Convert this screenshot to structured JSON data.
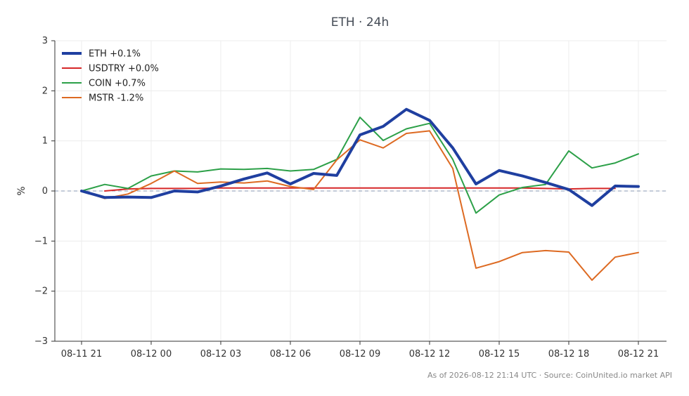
{
  "chart_data": {
    "type": "line",
    "title": "ETH · 24h",
    "xlabel": "",
    "ylabel": "%",
    "ylim": [
      -3,
      3
    ],
    "y_ticks": [
      -3,
      -2,
      -1,
      0,
      1,
      2,
      3
    ],
    "y_tick_labels": [
      "−3",
      "−2",
      "−1",
      "0",
      "1",
      "2",
      "3"
    ],
    "x_ticks": [
      0,
      3,
      6,
      9,
      12,
      15,
      18,
      21,
      24
    ],
    "x_tick_labels": [
      "08-11 21",
      "08-12 00",
      "08-12 03",
      "08-12 06",
      "08-12 09",
      "08-12 12",
      "08-12 15",
      "08-12 18",
      "08-12 21"
    ],
    "x_unit": "hours since 08-11 21:00 UTC",
    "grid": true,
    "legend_position": "top-left",
    "zero_line": true,
    "series": [
      {
        "name": "ETH +0.1%",
        "color": "#1f3fa0",
        "width": 4,
        "x": [
          0,
          1,
          2,
          3,
          4,
          5,
          6,
          7,
          8,
          9,
          10,
          11,
          12,
          13,
          14,
          15,
          16,
          17,
          18,
          19,
          20,
          21,
          22,
          23,
          24
        ],
        "y": [
          0.0,
          -0.13,
          -0.12,
          -0.13,
          0.0,
          -0.02,
          0.1,
          0.24,
          0.36,
          0.14,
          0.35,
          0.31,
          1.12,
          1.29,
          1.63,
          1.41,
          0.86,
          0.14,
          0.41,
          0.3,
          0.17,
          0.03,
          -0.29,
          0.1,
          0.09
        ]
      },
      {
        "name": "USDTRY +0.0%",
        "color": "#d62728",
        "width": 2,
        "x": [
          1,
          2,
          3,
          4,
          5,
          6,
          7,
          8,
          9,
          10,
          11,
          12,
          13,
          14,
          15,
          16,
          17,
          18,
          19,
          20,
          21,
          22,
          23
        ],
        "y": [
          0.0,
          0.04,
          0.05,
          0.05,
          0.05,
          0.06,
          0.06,
          0.06,
          0.06,
          0.06,
          0.06,
          0.06,
          0.06,
          0.06,
          0.06,
          0.06,
          0.06,
          0.06,
          0.06,
          0.05,
          0.04,
          0.05,
          0.05
        ]
      },
      {
        "name": "COIN +0.7%",
        "color": "#2ca048",
        "width": 2,
        "x": [
          0,
          1,
          2,
          3,
          4,
          5,
          6,
          7,
          8,
          9,
          10,
          11,
          12,
          13,
          14,
          15,
          16,
          17,
          18,
          19,
          20,
          21,
          22,
          23,
          24
        ],
        "y": [
          0.0,
          0.13,
          0.05,
          0.3,
          0.4,
          0.38,
          0.44,
          0.43,
          0.45,
          0.4,
          0.43,
          0.63,
          1.47,
          1.01,
          1.24,
          1.35,
          0.63,
          -0.44,
          -0.08,
          0.07,
          0.13,
          0.8,
          0.46,
          0.56,
          0.74
        ]
      },
      {
        "name": "MSTR -1.2%",
        "color": "#dd6a22",
        "width": 2,
        "x": [
          0,
          1,
          2,
          3,
          4,
          5,
          6,
          7,
          8,
          9,
          10,
          11,
          12,
          13,
          14,
          15,
          16,
          17,
          18,
          19,
          20,
          21,
          22,
          23,
          24
        ],
        "y": [
          0.0,
          -0.15,
          -0.06,
          0.15,
          0.4,
          0.15,
          0.18,
          0.16,
          0.2,
          0.09,
          0.03,
          0.62,
          1.02,
          0.86,
          1.15,
          1.2,
          0.45,
          -1.54,
          -1.41,
          -1.23,
          -1.19,
          -1.22,
          -1.78,
          -1.32,
          -1.23
        ]
      }
    ]
  },
  "footer": "As of 2026-08-12 21:14 UTC · Source: CoinUnited.io market API"
}
